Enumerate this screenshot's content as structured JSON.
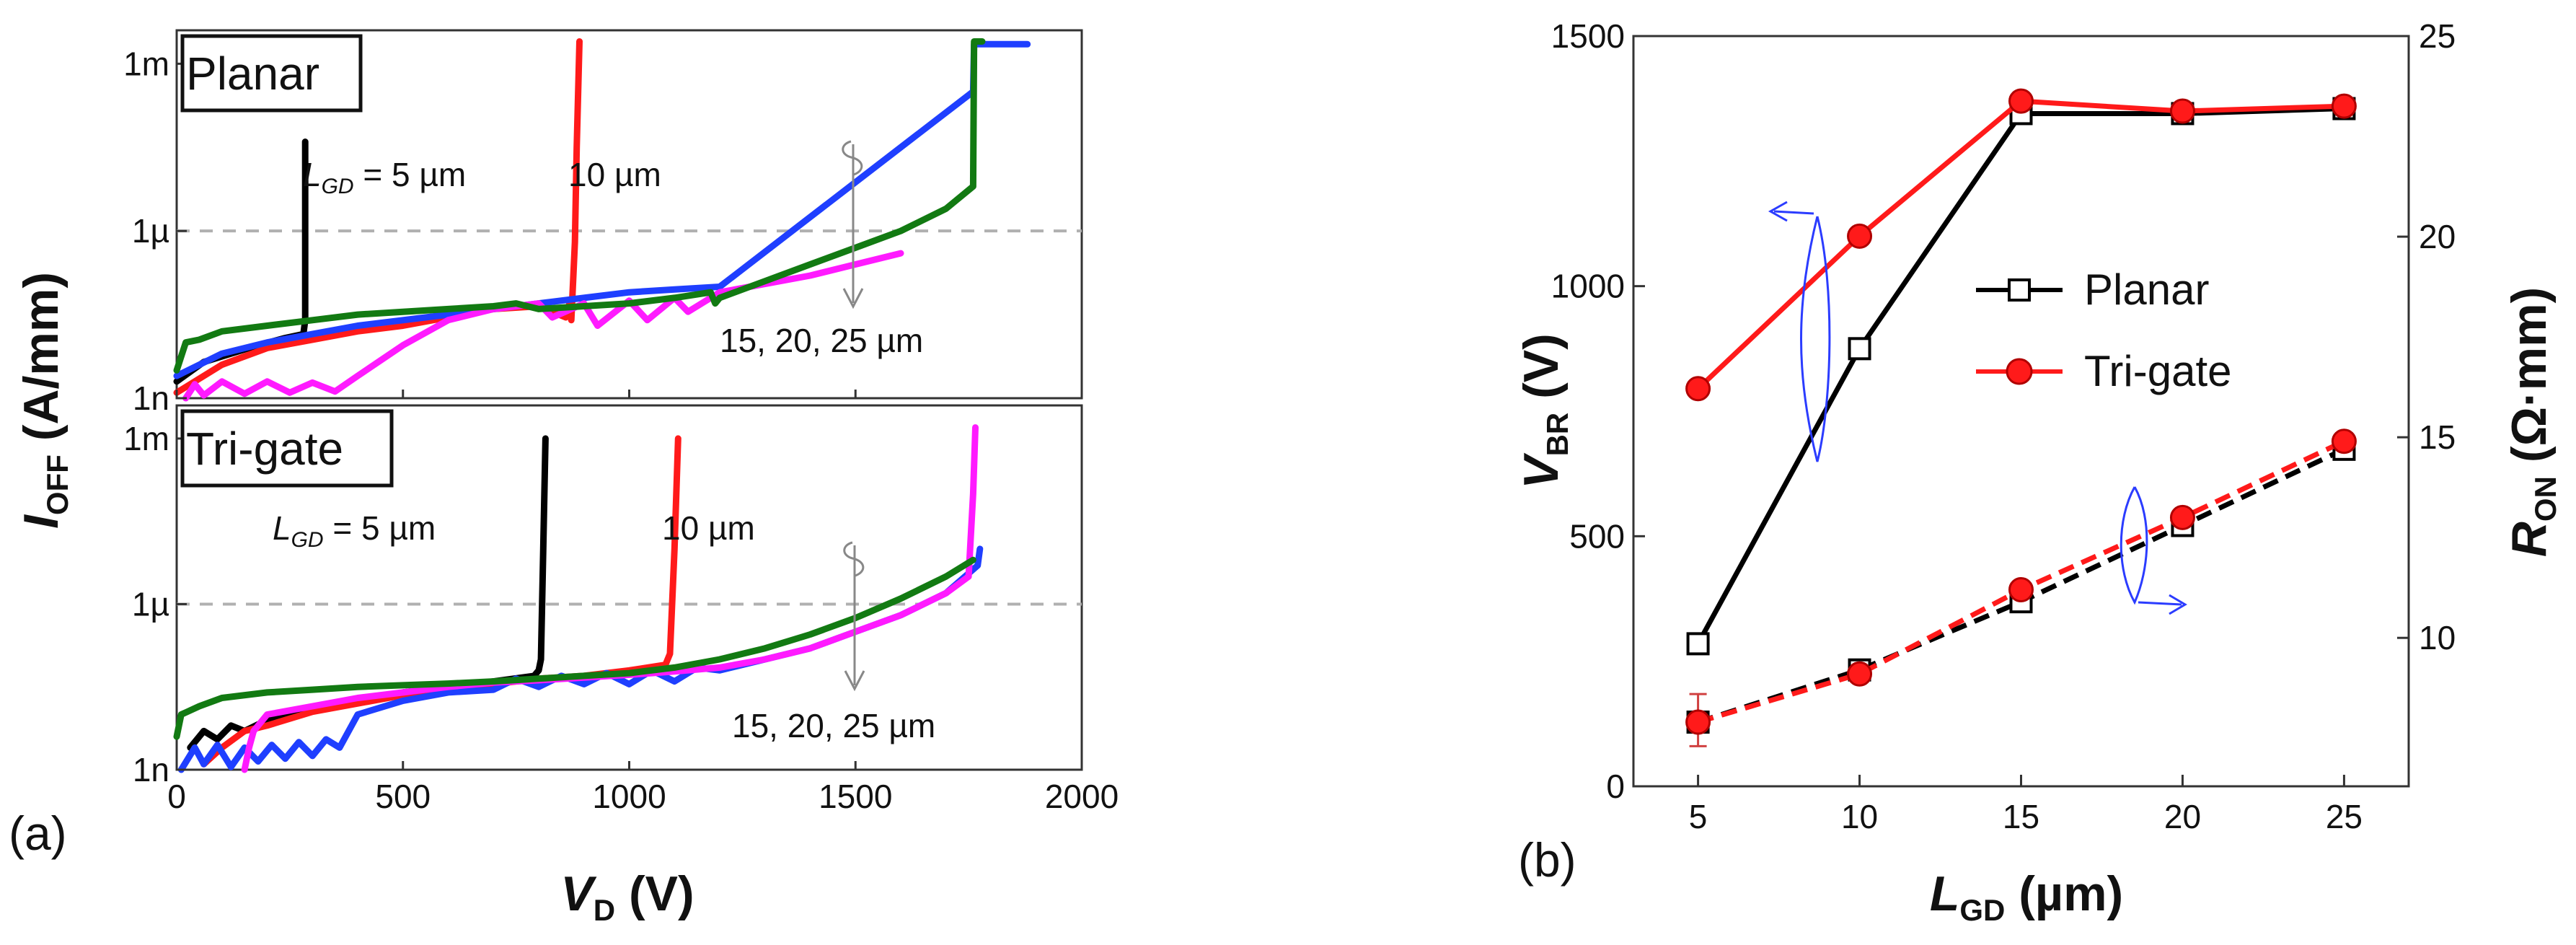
{
  "chart_data": [
    {
      "id": "a",
      "type": "line",
      "panel_label": "(a)",
      "xlabel_main": "V",
      "xlabel_sub": "D",
      "xlabel_unit": " (V)",
      "ylabel_main": "I",
      "ylabel_sub": "OFF",
      "ylabel_unit": " (A/mm)",
      "xlim": [
        0,
        2000
      ],
      "x_ticks": [
        0,
        500,
        1000,
        1500,
        2000
      ],
      "y_scale": "log",
      "y_ticks": [
        {
          "value": 1e-09,
          "label": "1n"
        },
        {
          "value": 1e-06,
          "label": "1µ"
        },
        {
          "value": 0.001,
          "label": "1m"
        }
      ],
      "reference_line": {
        "value": 1e-06,
        "style": "dashed",
        "color": "#b0b0b0"
      },
      "subplots": [
        {
          "id": "planar",
          "title": "Planar",
          "ylim_log10": [
            -9,
            -2.4
          ],
          "annotations": {
            "lgd_prefix": "L",
            "lgd_sub": "GD",
            "lgd_rest": " = 5 µm",
            "ten": "10 µm",
            "rest": "15, 20, 25 µm"
          },
          "series": [
            {
              "name": "5 µm",
              "color": "#000000",
              "x": [
                0,
                60,
                120,
                180,
                240,
                280,
                284,
                284
              ],
              "y": [
                -8.7,
                -8.35,
                -8.2,
                -8.05,
                -7.92,
                -7.85,
                -7.6,
                -4.4
              ]
            },
            {
              "name": "10 µm",
              "color": "#ff1a1a",
              "x": [
                0,
                100,
                200,
                300,
                400,
                500,
                600,
                700,
                800,
                860,
                868,
                872,
                880,
                884,
                890
              ],
              "y": [
                -8.9,
                -8.4,
                -8.1,
                -7.95,
                -7.8,
                -7.7,
                -7.55,
                -7.4,
                -7.35,
                -7.55,
                -7.3,
                -7.6,
                -6.2,
                -4.5,
                -2.6
              ]
            },
            {
              "name": "15 µm",
              "color": "#1f3fff",
              "x": [
                0,
                100,
                200,
                300,
                400,
                500,
                600,
                700,
                800,
                900,
                1000,
                1100,
                1200,
                1760,
                1762,
                1800,
                1880
              ],
              "y": [
                -8.6,
                -8.2,
                -8.0,
                -7.85,
                -7.7,
                -7.6,
                -7.5,
                -7.4,
                -7.3,
                -7.2,
                -7.1,
                -7.05,
                -7.0,
                -3.5,
                -2.65,
                -2.65,
                -2.65
              ]
            },
            {
              "name": "20 µm",
              "color": "#ff1aff",
              "x": [
                20,
                40,
                60,
                100,
                150,
                200,
                250,
                300,
                350,
                400,
                500,
                600,
                700,
                800,
                830,
                900,
                930,
                1000,
                1040,
                1100,
                1130,
                1200,
                1300,
                1400,
                1500,
                1600
              ],
              "y": [
                -9.0,
                -8.75,
                -8.95,
                -8.7,
                -8.92,
                -8.7,
                -8.9,
                -8.72,
                -8.88,
                -8.6,
                -8.05,
                -7.6,
                -7.4,
                -7.3,
                -7.55,
                -7.3,
                -7.7,
                -7.25,
                -7.6,
                -7.2,
                -7.45,
                -7.1,
                -6.95,
                -6.8,
                -6.6,
                -6.4
              ]
            },
            {
              "name": "25 µm",
              "color": "#127a12",
              "x": [
                0,
                20,
                50,
                100,
                200,
                300,
                400,
                500,
                600,
                700,
                750,
                800,
                900,
                1000,
                1100,
                1180,
                1190,
                1200,
                1300,
                1400,
                1500,
                1600,
                1700,
                1760,
                1762,
                1780
              ],
              "y": [
                -8.5,
                -8.0,
                -7.95,
                -7.8,
                -7.7,
                -7.6,
                -7.5,
                -7.45,
                -7.4,
                -7.35,
                -7.3,
                -7.4,
                -7.35,
                -7.3,
                -7.2,
                -7.1,
                -7.3,
                -7.2,
                -6.9,
                -6.6,
                -6.3,
                -6.0,
                -5.6,
                -5.2,
                -2.6,
                -2.6
              ]
            }
          ]
        },
        {
          "id": "trigate",
          "title": "Tri-gate",
          "ylim_log10": [
            -9,
            -2.4
          ],
          "annotations": {
            "lgd_prefix": "L",
            "lgd_sub": "GD",
            "lgd_rest": " = 5 µm",
            "ten": "10 µm",
            "rest": "15, 20, 25 µm"
          },
          "series": [
            {
              "name": "5 µm",
              "color": "#000000",
              "x": [
                30,
                60,
                90,
                120,
                150,
                200,
                300,
                400,
                500,
                600,
                700,
                790,
                800,
                805,
                810,
                815
              ],
              "y": [
                -8.6,
                -8.3,
                -8.45,
                -8.2,
                -8.3,
                -8.1,
                -7.9,
                -7.75,
                -7.6,
                -7.5,
                -7.4,
                -7.3,
                -7.2,
                -7.0,
                -5.0,
                -3.0
              ]
            },
            {
              "name": "10 µm",
              "color": "#ff1a1a",
              "x": [
                60,
                100,
                150,
                200,
                300,
                400,
                500,
                600,
                700,
                800,
                900,
                1000,
                1080,
                1090,
                1100,
                1108
              ],
              "y": [
                -8.9,
                -8.6,
                -8.3,
                -8.2,
                -7.95,
                -7.8,
                -7.65,
                -7.55,
                -7.45,
                -7.35,
                -7.3,
                -7.2,
                -7.1,
                -6.9,
                -5.0,
                -3.0
              ]
            },
            {
              "name": "15 µm",
              "color": "#1f3fff",
              "x": [
                10,
                40,
                60,
                90,
                120,
                150,
                180,
                210,
                240,
                270,
                300,
                330,
                360,
                400,
                500,
                600,
                700,
                750,
                800,
                850,
                900,
                950,
                1000,
                1050,
                1100,
                1150,
                1200,
                1300,
                1400,
                1500,
                1600,
                1700,
                1770,
                1775
              ],
              "y": [
                -9.0,
                -8.6,
                -8.9,
                -8.55,
                -8.95,
                -8.6,
                -8.85,
                -8.55,
                -8.8,
                -8.5,
                -8.75,
                -8.45,
                -8.6,
                -8.0,
                -7.75,
                -7.6,
                -7.55,
                -7.35,
                -7.5,
                -7.3,
                -7.45,
                -7.25,
                -7.45,
                -7.2,
                -7.4,
                -7.15,
                -7.2,
                -7.0,
                -6.8,
                -6.5,
                -6.2,
                -5.8,
                -5.3,
                -5.0
              ]
            },
            {
              "name": "20 µm",
              "color": "#ff1aff",
              "x": [
                150,
                160,
                170,
                200,
                300,
                400,
                500,
                600,
                700,
                800,
                900,
                1000,
                1100,
                1200,
                1300,
                1400,
                1500,
                1600,
                1700,
                1750,
                1760,
                1765
              ],
              "y": [
                -9.0,
                -8.6,
                -8.3,
                -8.0,
                -7.85,
                -7.7,
                -7.6,
                -7.5,
                -7.42,
                -7.38,
                -7.33,
                -7.28,
                -7.22,
                -7.15,
                -7.0,
                -6.8,
                -6.5,
                -6.2,
                -5.8,
                -5.5,
                -4.0,
                -2.8
              ]
            },
            {
              "name": "25 µm",
              "color": "#127a12",
              "x": [
                0,
                10,
                50,
                100,
                200,
                300,
                400,
                500,
                600,
                700,
                800,
                900,
                1000,
                1100,
                1200,
                1300,
                1400,
                1500,
                1600,
                1700,
                1760
              ],
              "y": [
                -8.4,
                -8.0,
                -7.85,
                -7.7,
                -7.6,
                -7.55,
                -7.5,
                -7.47,
                -7.44,
                -7.4,
                -7.35,
                -7.3,
                -7.25,
                -7.15,
                -7.0,
                -6.8,
                -6.55,
                -6.25,
                -5.9,
                -5.5,
                -5.2
              ]
            }
          ]
        }
      ]
    },
    {
      "id": "b",
      "type": "line",
      "panel_label": "(b)",
      "xlabel_main": "L",
      "xlabel_sub": "GD",
      "xlabel_unit": " (µm)",
      "ylabel_main": "V",
      "ylabel_sub": "BR",
      "ylabel_unit": " (V)",
      "y2label_main": "R",
      "y2label_sub": "ON",
      "y2label_unit": " (Ω·mm)",
      "xlim": [
        3,
        27
      ],
      "x_ticks": [
        5,
        10,
        15,
        20,
        25
      ],
      "ylim": [
        0,
        1500
      ],
      "y_ticks": [
        0,
        500,
        1000,
        1500
      ],
      "y2lim": [
        6.3,
        25
      ],
      "y2_ticks": [
        10,
        15,
        20,
        25
      ],
      "legend": {
        "placement": "center-right"
      },
      "series": [
        {
          "name": "Planar",
          "axis": "left",
          "marker": "square",
          "style": "solid",
          "color": "#000000",
          "x": [
            5,
            10,
            15,
            20,
            25
          ],
          "y": [
            285,
            875,
            1345,
            1345,
            1355
          ]
        },
        {
          "name": "Tri-gate",
          "axis": "left",
          "marker": "circle",
          "style": "solid",
          "color": "#ff1a1a",
          "x": [
            5,
            10,
            15,
            20,
            25
          ],
          "y": [
            795,
            1100,
            1370,
            1350,
            1360
          ]
        },
        {
          "name": "",
          "axis": "right",
          "marker": "square",
          "style": "dashed",
          "color": "#000000",
          "x": [
            5,
            10,
            15,
            20,
            25
          ],
          "y": [
            7.9,
            9.2,
            10.9,
            12.8,
            14.7
          ]
        },
        {
          "name": "",
          "axis": "right",
          "marker": "circle",
          "style": "dashed",
          "color": "#ff1a1a",
          "x": [
            5,
            10,
            15,
            20,
            25
          ],
          "y": [
            7.9,
            9.1,
            11.2,
            13.0,
            14.9
          ]
        }
      ],
      "error_bar": {
        "x": 5,
        "low": 7.3,
        "high": 8.6
      }
    }
  ]
}
